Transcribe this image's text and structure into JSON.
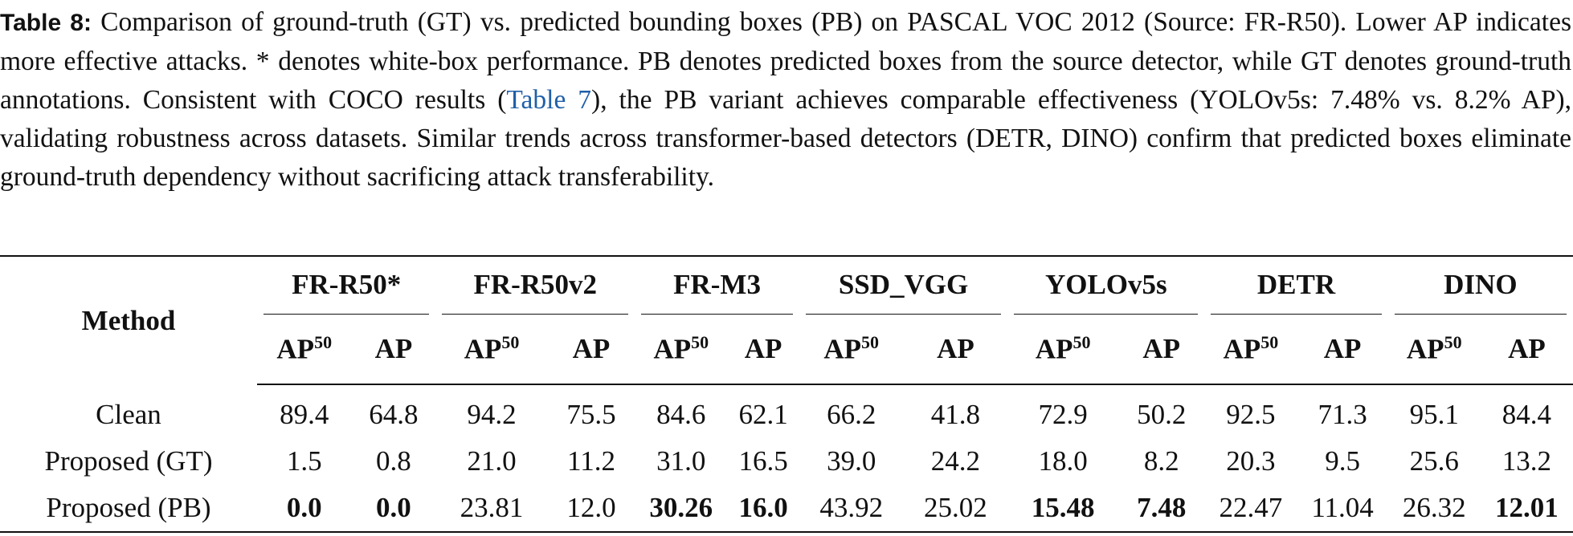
{
  "caption": {
    "label": "Table 8:",
    "text_before": "Comparison of ground-truth (GT) vs. predicted bounding boxes (PB) on PASCAL VOC 2012 (Source: FR-R50). Lower AP indicates more effective attacks. * denotes white-box performance. PB denotes predicted boxes from the source detector, while GT denotes ground-truth annotations. Consistent with COCO results (",
    "link": "Table 7",
    "text_after": "), the PB variant achieves comparable effectiveness (YOLOv5s: 7.48% vs. 8.2% AP), validating robustness across datasets. Similar trends across transformer-based detectors (DETR, DINO) confirm that predicted boxes eliminate ground-truth dependency without sacrificing attack transferability."
  },
  "table": {
    "method_header": "Method",
    "detectors": [
      "FR-R50*",
      "FR-R50v2",
      "FR-M3",
      "SSD_VGG",
      "YOLOv5s",
      "DETR",
      "DINO"
    ],
    "columns": [
      {
        "label": "AP",
        "sup": "50"
      },
      {
        "label": "AP"
      },
      {
        "label": "AP",
        "sup": "50"
      },
      {
        "label": "AP"
      },
      {
        "label": "AP",
        "sup": "50"
      },
      {
        "label": "AP"
      },
      {
        "label": "AP",
        "sup": "50"
      },
      {
        "label": "AP"
      },
      {
        "label": "AP",
        "sup": "50"
      },
      {
        "label": "AP"
      },
      {
        "label": "AP",
        "sup": "50"
      },
      {
        "label": "AP"
      },
      {
        "label": "AP",
        "sup": "50"
      },
      {
        "label": "AP"
      }
    ],
    "rows": [
      {
        "method": "Clean",
        "values": [
          "89.4",
          "64.8",
          "94.2",
          "75.5",
          "84.6",
          "62.1",
          "66.2",
          "41.8",
          "72.9",
          "50.2",
          "92.5",
          "71.3",
          "95.1",
          "84.4"
        ],
        "bold": []
      },
      {
        "method": "Proposed (GT)",
        "values": [
          "1.5",
          "0.8",
          "21.0",
          "11.2",
          "31.0",
          "16.5",
          "39.0",
          "24.2",
          "18.0",
          "8.2",
          "20.3",
          "9.5",
          "25.6",
          "13.2"
        ],
        "bold": []
      },
      {
        "method": "Proposed (PB)",
        "values": [
          "0.0",
          "0.0",
          "23.81",
          "12.0",
          "30.26",
          "16.0",
          "43.92",
          "25.02",
          "15.48",
          "7.48",
          "22.47",
          "11.04",
          "26.32",
          "12.01"
        ],
        "bold": [
          0,
          1,
          4,
          5,
          8,
          9,
          13
        ]
      }
    ]
  }
}
